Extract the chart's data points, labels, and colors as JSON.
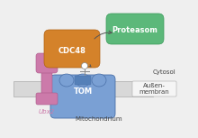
{
  "bg_color": "#efefef",
  "proteasom_color": "#5cb87a",
  "proteasom_edge": "#3a9a5a",
  "cdc48_color": "#d4822a",
  "cdc48_edge": "#b06010",
  "ubx2_color": "#cc7aaa",
  "ubx2_edge": "#aa5888",
  "tom_color": "#7aa0d4",
  "tom_edge": "#4a70a8",
  "membrane_color": "#d8d8d8",
  "membrane_edge": "#aaaaaa",
  "white_box_color": "#f5f5f5",
  "label_proteasom": "Proteasom",
  "label_cdc48": "CDC48",
  "label_tom": "TOM",
  "label_ubx2": "Ubx2",
  "label_cytosol": "Cytosol",
  "label_aussenmembran": "Außen-\nmembran",
  "label_mitochondrium": "Mitochondrium",
  "font_color": "#444444",
  "font_size_labels": 6,
  "font_size_small": 5.5,
  "font_size_tiny": 5
}
